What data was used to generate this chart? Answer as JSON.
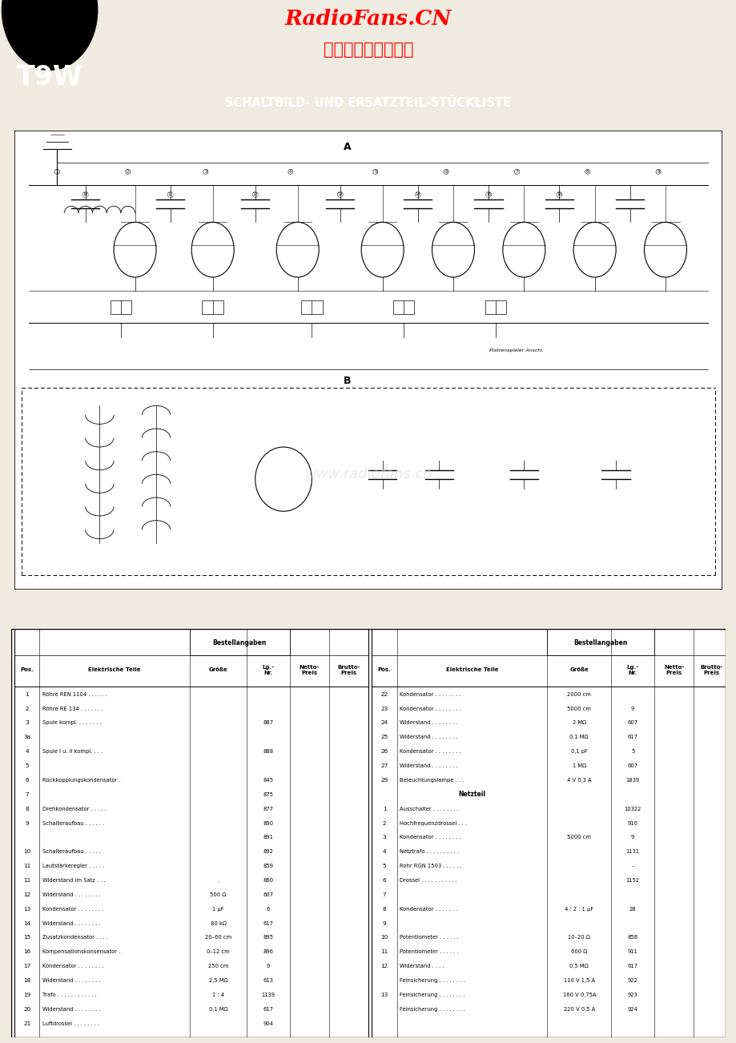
{
  "title_radiofans": "RadioFans.CN",
  "title_chinese": "收音机爱好者资料库",
  "title_schaltbild": "SCHALTBILD- UND ERSATZTEIL-STÜCKLISTE",
  "badge_text": "T9W",
  "watermark": "www.radiofans.cn",
  "bg_color": "#f0ebe0",
  "header_bar_color": "#1a1a1a",
  "header_text_color": "#ffffff",
  "left_table_rows": [
    [
      "1",
      "Röhre REN 1104 . . . . . .",
      "",
      "",
      "",
      ""
    ],
    [
      "2",
      "Röhre RE 134 . . . . . . .",
      "",
      "",
      "",
      ""
    ],
    [
      "3",
      "Spule kompl. . . . . . . .",
      "",
      "887",
      "",
      ""
    ],
    [
      "3a",
      "",
      "",
      "",
      "",
      ""
    ],
    [
      "4",
      "Spule I u. II kompl. . . .",
      "",
      "888",
      "",
      ""
    ],
    [
      "5",
      "",
      "",
      "",
      "",
      ""
    ],
    [
      "6",
      "Rückkopplungskondensator .",
      "",
      "845",
      "",
      ""
    ],
    [
      "7",
      "",
      "",
      "875",
      "",
      ""
    ],
    [
      "8",
      "Drehkondensator . . . . .",
      "",
      "877",
      "",
      ""
    ],
    [
      "9",
      "Schalteraufbau . . . . . .",
      "",
      "890",
      "",
      ""
    ],
    [
      "",
      "",
      "",
      "891",
      "",
      ""
    ],
    [
      "10",
      "Schalteraufbau . . . . .",
      "",
      "892",
      "",
      ""
    ],
    [
      "11",
      "Lautstärkeregler . . . . .",
      "",
      "859",
      "",
      ""
    ],
    [
      "11",
      "Widerstand im Satz . . .",
      ".",
      "860",
      "",
      ""
    ],
    [
      "12",
      "Widerstand . . . . . . . .",
      "500 Ω",
      "607",
      "",
      ""
    ],
    [
      "13",
      "Kondensator . . . . . . . .",
      "1 μF",
      "6",
      "",
      ""
    ],
    [
      "14",
      "Widerstand . . . . . . . .",
      "80 kΩ",
      "617",
      "",
      ""
    ],
    [
      "15",
      "Zusatzkondensator . . . .",
      "20–60 cm",
      "895",
      "",
      ""
    ],
    [
      "16",
      "Kompensationskonsensator .",
      "0–12 cm",
      "896",
      "",
      ""
    ],
    [
      "17",
      "Kondensator . . . . . . . .",
      "250 cm",
      "9",
      "",
      ""
    ],
    [
      "18",
      "Widerstand . . . . . . . .",
      "2,5 MΩ",
      "613",
      "",
      ""
    ],
    [
      "19",
      "Trafo . . . . . . . . . . . .",
      "1 : 4",
      "1139",
      "",
      ""
    ],
    [
      "20",
      "Widerstand . . . . . . . .",
      "0,1 MΩ",
      "617",
      "",
      ""
    ],
    [
      "21",
      "Luftdrossel . . . . . . . .",
      "",
      "904",
      "",
      ""
    ]
  ],
  "right_table_rows": [
    [
      "22",
      "Kondensator . . . . . . . .",
      "2000 cm",
      "",
      "",
      ""
    ],
    [
      "23",
      "Kondensator . . . . . . . .",
      "5000 cm",
      "9",
      "",
      ""
    ],
    [
      "24",
      "Widerstand . . . . . . . .",
      "2 MΩ",
      "607",
      "",
      ""
    ],
    [
      "25",
      "Widerstand . . . . . . . .",
      "0,1 MΩ",
      "617",
      "",
      ""
    ],
    [
      "26",
      "Kondensator . . . . . . . .",
      "0,1 pF",
      "5",
      "",
      ""
    ],
    [
      "27",
      "Widerstand . . . . . . . .",
      "1 MΩ",
      "607",
      "",
      ""
    ],
    [
      "29",
      "Beleuchtungslampe . . .",
      "4 V 0,3 A",
      "1839",
      "",
      ""
    ],
    [
      "",
      "Netzteil",
      "",
      "",
      "",
      ""
    ],
    [
      "1",
      "Ausschalter . . . . . . . .",
      "",
      "10322",
      "",
      ""
    ],
    [
      "2",
      "Hochfrequenzdrossel . . .",
      "",
      "910",
      "",
      ""
    ],
    [
      "3",
      "Kondensator . . . . . . . .",
      "5000 cm",
      "9",
      "",
      ""
    ],
    [
      "4",
      "Netztrafo . . . . . . . . . .",
      "",
      "1131",
      "",
      ""
    ],
    [
      "5",
      "Rohr RGN 1503 . . . . . .",
      "",
      "–",
      "",
      ""
    ],
    [
      "6",
      "Drossel . . . . . . . . . . .",
      "",
      "1152",
      "",
      ""
    ],
    [
      "7",
      "",
      "",
      "",
      "",
      ""
    ],
    [
      "8",
      "Kondensator . . . . . . .",
      "4 : 2 : 1 μF",
      "28",
      "",
      ""
    ],
    [
      "9",
      "",
      "",
      "",
      "",
      ""
    ],
    [
      "10",
      "Potentiometer . . . . . .",
      "10–20 Ω",
      "858",
      "",
      ""
    ],
    [
      "11",
      "Potentiometer . . . . . .",
      "600 Ω",
      "911",
      "",
      ""
    ],
    [
      "12",
      "Widerstand . . . .",
      "0,5 MΩ",
      "617",
      "",
      ""
    ],
    [
      "",
      "Feinsicherung . . . . . . . .",
      "110 V 1,5 A",
      "922",
      "",
      ""
    ],
    [
      "13",
      "Feinsicherung . . . . . . . .",
      "160 V 0,75A",
      "923",
      "",
      ""
    ],
    [
      "",
      "Feinsicherung . . . . . . . .",
      "220 V 0,5 A",
      "924",
      "",
      ""
    ]
  ]
}
